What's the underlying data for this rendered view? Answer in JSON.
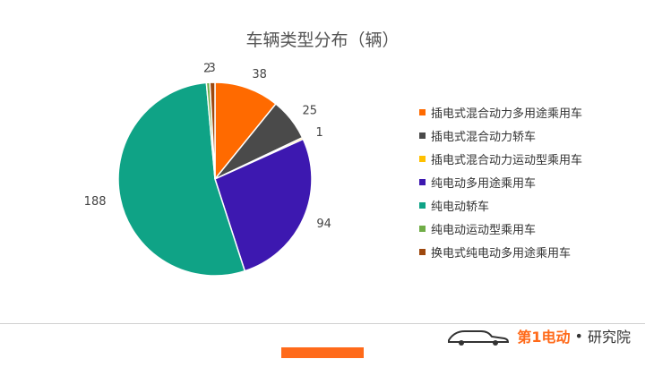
{
  "chart_data": {
    "type": "pie",
    "title": "车辆类型分布（辆）",
    "categories": [
      "插电式混合动力多用途乘用车",
      "插电式混合动力轿车",
      "插电式混合动力运动型乘用车",
      "纯电动多用途乘用车",
      "纯电动轿车",
      "纯电动运动型乘用车",
      "换电式纯电动多用途乘用车"
    ],
    "values": [
      38,
      25,
      1,
      94,
      188,
      2,
      3
    ],
    "colors": [
      "#ff6a00",
      "#4a4a4a",
      "#ffc000",
      "#3d18b0",
      "#0fa386",
      "#70ad47",
      "#9e480e"
    ],
    "legend": "right",
    "start_angle_deg": 0,
    "direction": "clockwise"
  },
  "brand": {
    "logo_text": "第1电动",
    "separator": "•",
    "institute": "研究院"
  }
}
